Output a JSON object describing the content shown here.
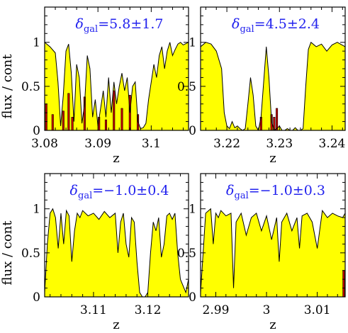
{
  "figure": {
    "ylabel": "flux / cont",
    "xlabel": "z"
  },
  "colors": {
    "fill": "#ffff00",
    "line": "#000000",
    "bar": "#cc0000",
    "title": "#2222ee"
  },
  "chart_data": [
    {
      "type": "area",
      "title_symbol": "δ",
      "title_sub": "gal",
      "title_value": "=5.8±1.7",
      "xlabel": "z",
      "ylabel": "flux / cont",
      "xlim": [
        3.08,
        3.107
      ],
      "ylim": [
        0,
        1.4
      ],
      "xticks": [
        3.08,
        3.09,
        3.1
      ],
      "xtick_labels": [
        "3.08",
        "3.09",
        "3.1"
      ],
      "yticks": [
        0,
        0.5,
        1
      ],
      "ytick_labels": [
        "0",
        "0.5",
        "1"
      ],
      "flux": {
        "x": [
          3.08,
          3.081,
          3.082,
          3.0825,
          3.083,
          3.0835,
          3.084,
          3.0845,
          3.085,
          3.0855,
          3.086,
          3.0865,
          3.087,
          3.0875,
          3.088,
          3.0885,
          3.089,
          3.0895,
          3.09,
          3.0905,
          3.091,
          3.0915,
          3.092,
          3.0925,
          3.093,
          3.0935,
          3.094,
          3.0945,
          3.095,
          3.0955,
          3.096,
          3.0965,
          3.097,
          3.0975,
          3.098,
          3.0985,
          3.099,
          3.0995,
          3.1,
          3.1005,
          3.101,
          3.1015,
          3.102,
          3.1025,
          3.103,
          3.1035,
          3.104,
          3.1045,
          3.105,
          3.1055,
          3.106,
          3.107
        ],
        "y": [
          1.0,
          0.95,
          0.88,
          0.55,
          0.05,
          0.4,
          0.9,
          0.98,
          0.65,
          0.1,
          0.75,
          0.6,
          0.08,
          0.3,
          0.85,
          0.7,
          0.15,
          0.35,
          0.05,
          0.25,
          0.45,
          0.15,
          0.6,
          0.2,
          0.55,
          0.3,
          0.5,
          0.65,
          0.45,
          0.6,
          0.2,
          0.5,
          0.55,
          0.1,
          0.02,
          0.03,
          0.08,
          0.35,
          0.55,
          0.75,
          0.6,
          0.85,
          0.95,
          0.7,
          0.9,
          1.0,
          0.85,
          0.92,
          0.98,
          1.0,
          0.97,
          1.0
        ]
      },
      "bars": {
        "x": [
          3.0803,
          3.0815,
          3.0835,
          3.0845,
          3.0852,
          3.0875,
          3.0902,
          3.0915,
          3.093,
          3.0945,
          3.096,
          3.0975
        ],
        "y": [
          0.3,
          0.18,
          0.22,
          0.42,
          0.15,
          0.38,
          0.15,
          0.12,
          0.45,
          0.25,
          0.4,
          0.18
        ]
      }
    },
    {
      "type": "area",
      "title_symbol": "δ",
      "title_sub": "gal",
      "title_value": "=4.5±2.4",
      "xlabel": "z",
      "ylabel": "flux / cont",
      "xlim": [
        3.215,
        3.2425
      ],
      "ylim": [
        0,
        1.4
      ],
      "xticks": [
        3.22,
        3.23,
        3.24
      ],
      "xtick_labels": [
        "3.22",
        "3.23",
        "3.24"
      ],
      "yticks": [
        0,
        0.5,
        1
      ],
      "ytick_labels": [
        "0",
        "0.5",
        "1"
      ],
      "flux": {
        "x": [
          3.215,
          3.216,
          3.217,
          3.218,
          3.219,
          3.2195,
          3.22,
          3.2205,
          3.221,
          3.2215,
          3.222,
          3.2225,
          3.223,
          3.2235,
          3.224,
          3.2245,
          3.225,
          3.2255,
          3.226,
          3.2265,
          3.227,
          3.2275,
          3.228,
          3.2285,
          3.229,
          3.2295,
          3.23,
          3.2305,
          3.231,
          3.2315,
          3.232,
          3.2325,
          3.233,
          3.2335,
          3.234,
          3.2345,
          3.235,
          3.2355,
          3.236,
          3.237,
          3.238,
          3.239,
          3.24,
          3.241,
          3.2425
        ],
        "y": [
          0.95,
          1.0,
          0.98,
          0.9,
          0.7,
          0.2,
          0.05,
          0.02,
          0.1,
          0.03,
          0.05,
          0.02,
          0.0,
          0.02,
          0.3,
          0.6,
          0.4,
          0.05,
          0.0,
          0.15,
          0.55,
          0.95,
          0.6,
          0.1,
          0.0,
          0.02,
          0.05,
          0.0,
          0.0,
          0.02,
          0.0,
          0.0,
          0.03,
          0.0,
          0.0,
          0.02,
          0.5,
          0.92,
          1.0,
          0.95,
          0.98,
          0.9,
          0.97,
          1.0,
          0.95
        ]
      },
      "bars": {
        "x": [
          3.2265,
          3.2285,
          3.229,
          3.2295
        ],
        "y": [
          0.15,
          0.18,
          0.15,
          0.25
        ]
      }
    },
    {
      "type": "area",
      "title_symbol": "δ",
      "title_sub": "gal",
      "title_value": "=−1.0±0.4",
      "xlabel": "z",
      "ylabel": "flux / cont",
      "xlim": [
        3.101,
        3.1275
      ],
      "ylim": [
        0,
        1.4
      ],
      "xticks": [
        3.11,
        3.12
      ],
      "xtick_labels": [
        "3.11",
        "3.12"
      ],
      "yticks": [
        0,
        0.5,
        1
      ],
      "ytick_labels": [
        "0",
        "0.5",
        "1"
      ],
      "flux": {
        "x": [
          3.101,
          3.1015,
          3.102,
          3.1025,
          3.103,
          3.1035,
          3.104,
          3.1045,
          3.105,
          3.1055,
          3.106,
          3.1065,
          3.107,
          3.1075,
          3.108,
          3.109,
          3.11,
          3.111,
          3.112,
          3.113,
          3.114,
          3.1145,
          3.115,
          3.1155,
          3.116,
          3.1165,
          3.117,
          3.1175,
          3.118,
          3.1185,
          3.119,
          3.1195,
          3.12,
          3.1205,
          3.121,
          3.1215,
          3.122,
          3.1225,
          3.123,
          3.1235,
          3.124,
          3.1245,
          3.125,
          3.1255,
          3.126,
          3.127,
          3.1275
        ],
        "y": [
          0.05,
          0.6,
          0.95,
          1.0,
          0.9,
          0.55,
          0.95,
          0.6,
          0.98,
          0.92,
          0.4,
          0.75,
          0.95,
          0.9,
          0.98,
          0.92,
          0.95,
          0.88,
          0.97,
          0.9,
          0.95,
          0.5,
          0.85,
          0.95,
          0.6,
          0.45,
          0.9,
          0.85,
          0.4,
          0.05,
          0.0,
          0.0,
          0.05,
          0.5,
          0.85,
          0.75,
          0.9,
          0.45,
          0.6,
          0.92,
          0.95,
          0.88,
          0.95,
          0.5,
          0.2,
          0.05,
          0.2
        ]
      },
      "bars": {
        "x": [],
        "y": []
      }
    },
    {
      "type": "area",
      "title_symbol": "δ",
      "title_sub": "gal",
      "title_value": "=−1.0±0.3",
      "xlabel": "z",
      "ylabel": "flux / cont",
      "xlim": [
        2.987,
        3.0155
      ],
      "ylim": [
        0,
        1.4
      ],
      "xticks": [
        2.99,
        3.0,
        3.01
      ],
      "xtick_labels": [
        "2.99",
        "3",
        "3.01"
      ],
      "yticks": [
        0,
        0.5,
        1
      ],
      "ytick_labels": [
        "0",
        "0.5",
        "1"
      ],
      "flux": {
        "x": [
          2.987,
          2.988,
          2.989,
          2.9895,
          2.99,
          2.9905,
          2.991,
          2.992,
          2.993,
          2.9935,
          2.994,
          2.995,
          2.996,
          2.997,
          2.998,
          2.999,
          3.0,
          3.001,
          3.002,
          3.0025,
          3.003,
          3.004,
          3.005,
          3.006,
          3.0065,
          3.007,
          3.008,
          3.009,
          3.01,
          3.011,
          3.012,
          3.013,
          3.014,
          3.015,
          3.0155
        ],
        "y": [
          0.05,
          0.95,
          1.0,
          0.6,
          0.95,
          0.9,
          0.98,
          0.92,
          0.95,
          0.1,
          0.85,
          0.95,
          0.7,
          0.9,
          0.95,
          0.75,
          0.92,
          0.65,
          0.9,
          0.4,
          0.85,
          0.95,
          0.75,
          0.9,
          0.55,
          0.92,
          0.95,
          0.85,
          0.55,
          0.98,
          0.9,
          0.95,
          0.92,
          0.9,
          0.95
        ]
      },
      "bars": {
        "x": [
          3.0152
        ],
        "y": [
          0.3
        ]
      }
    }
  ]
}
